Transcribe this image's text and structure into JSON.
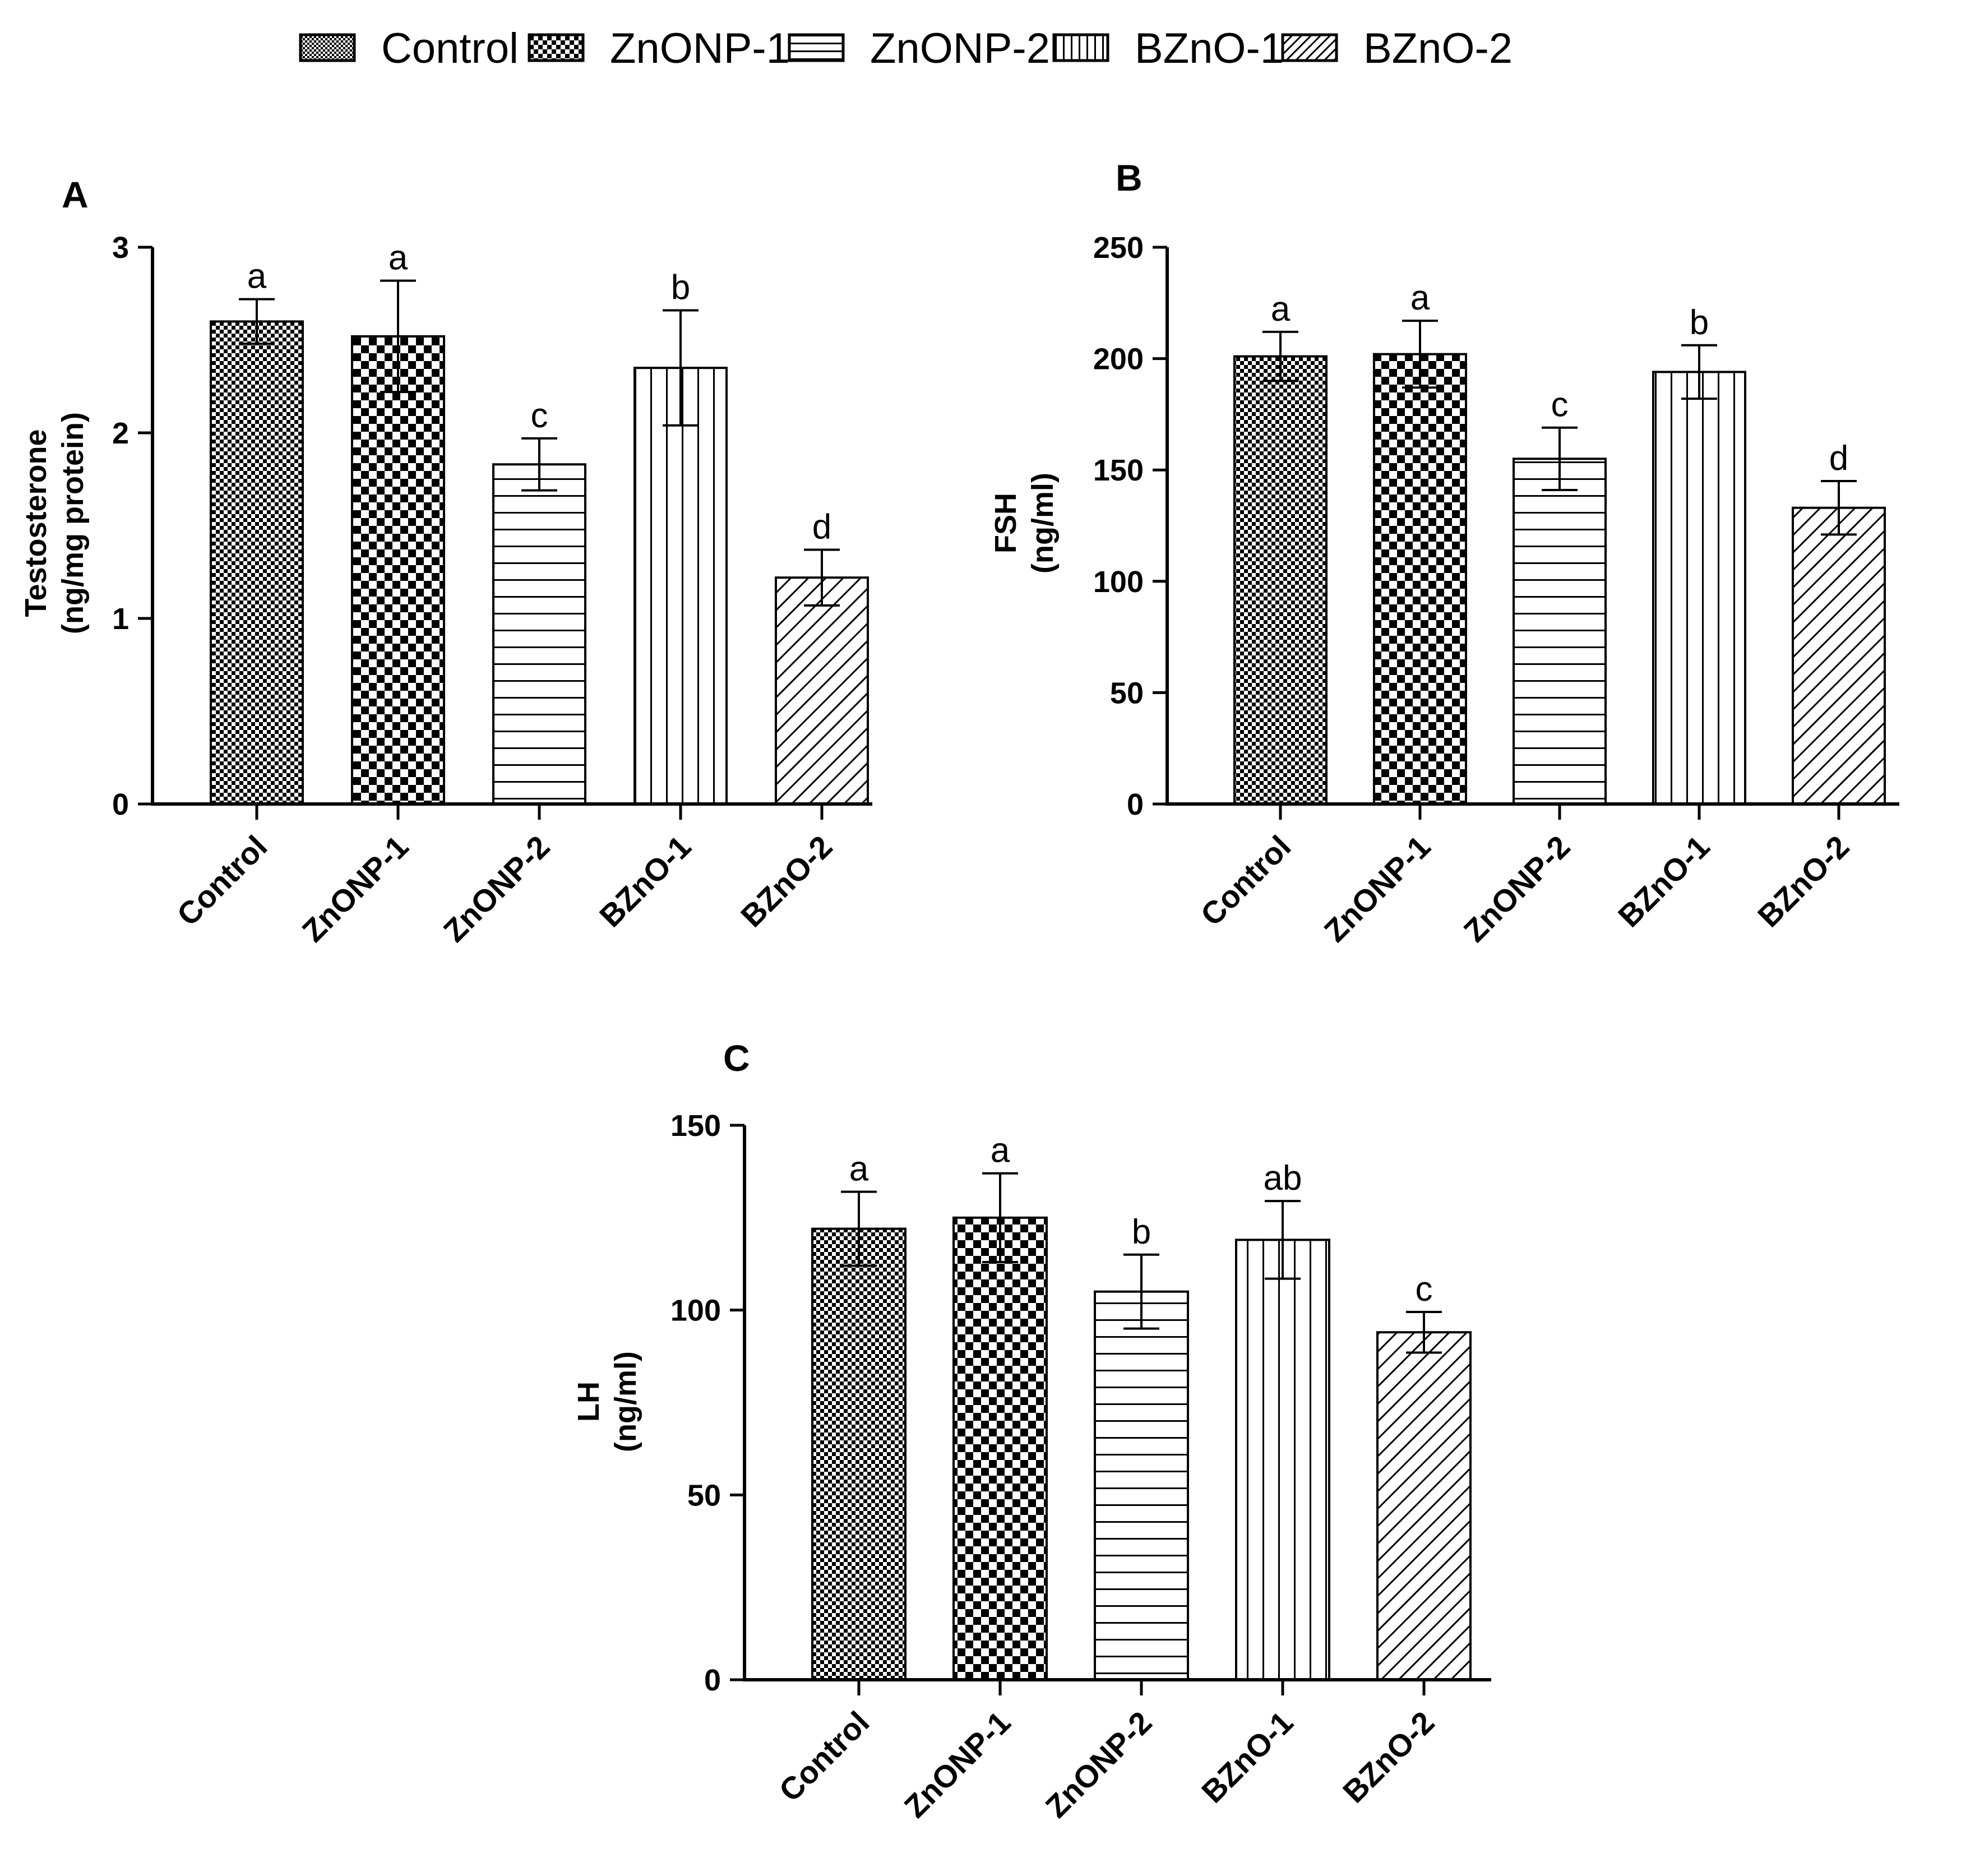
{
  "legend": {
    "entries": [
      {
        "label": "Control",
        "pattern": "fine-check"
      },
      {
        "label": "ZnONP-1",
        "pattern": "coarse-check"
      },
      {
        "label": "ZnONP-2",
        "pattern": "horizontal-lines"
      },
      {
        "label": "BZnO-1",
        "pattern": "vertical-lines"
      },
      {
        "label": "BZnO-2",
        "pattern": "diagonal-lines"
      }
    ]
  },
  "colors": {
    "ink": "#000000",
    "background": "#ffffff"
  },
  "chart_data": [
    {
      "type": "bar",
      "panel": "A",
      "title": "",
      "categories": [
        "Control",
        "ZnONP-1",
        "ZnONP-2",
        "BZnO-1",
        "BZnO-2"
      ],
      "values": [
        2.6,
        2.52,
        1.83,
        2.35,
        1.22
      ],
      "errors": [
        0.12,
        0.3,
        0.14,
        0.31,
        0.15
      ],
      "significance": [
        "a",
        "a",
        "c",
        "b",
        "d"
      ],
      "xlabel": "",
      "ylabel": "Testosterone",
      "ylabel_line2": "(ng/mg protein)",
      "ylim": [
        0,
        3
      ],
      "yticks": [
        0,
        1,
        2,
        3
      ],
      "ytick_labels": [
        "0",
        "1",
        "2",
        "3"
      ],
      "grid": false
    },
    {
      "type": "bar",
      "panel": "B",
      "title": "",
      "categories": [
        "Control",
        "ZnONP-1",
        "ZnONP-2",
        "BZnO-1",
        "BZnO-2"
      ],
      "values": [
        201,
        202,
        155,
        194,
        133
      ],
      "errors": [
        11,
        15,
        14,
        12,
        12
      ],
      "significance": [
        "a",
        "a",
        "c",
        "b",
        "d"
      ],
      "xlabel": "",
      "ylabel": "FSH",
      "ylabel_line2": "(ng/ml)",
      "ylim": [
        0,
        250
      ],
      "yticks": [
        0,
        50,
        100,
        150,
        200,
        250
      ],
      "ytick_labels": [
        "0",
        "50",
        "100",
        "150",
        "200",
        "250"
      ],
      "grid": false
    },
    {
      "type": "bar",
      "panel": "C",
      "title": "",
      "categories": [
        "Control",
        "ZnONP-1",
        "ZnONP-2",
        "BZnO-1",
        "BZnO-2"
      ],
      "values": [
        122,
        125,
        105,
        119,
        94
      ],
      "errors": [
        10,
        12,
        10,
        10.5,
        5.5
      ],
      "significance": [
        "a",
        "a",
        "b",
        "ab",
        "c"
      ],
      "xlabel": "",
      "ylabel": "LH",
      "ylabel_line2": "(ng/ml)",
      "ylim": [
        0,
        150
      ],
      "yticks": [
        0,
        50,
        100,
        150
      ],
      "ytick_labels": [
        "0",
        "50",
        "100",
        "150"
      ],
      "grid": false
    }
  ]
}
